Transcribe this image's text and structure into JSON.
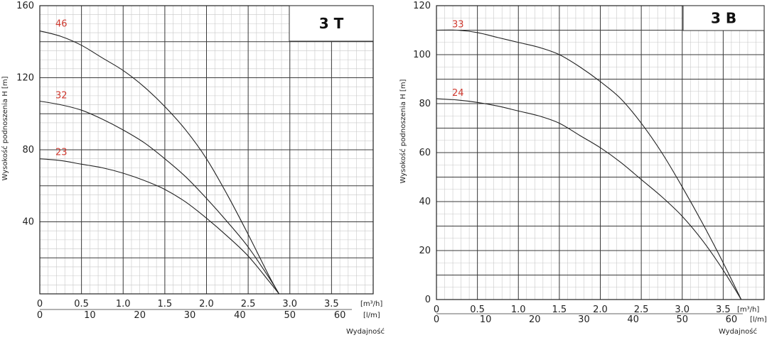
{
  "chart_data": [
    {
      "type": "line",
      "title": "3 T",
      "ylabel": "Wysokość podnoszenia H [m]",
      "x_unit": "[m³/h]",
      "x2_unit": "[l/m]",
      "xlabel": "Wydajność",
      "xlim": [
        0,
        4.0
      ],
      "ylim": [
        0,
        160
      ],
      "y_ticks": [
        40,
        80,
        120,
        160
      ],
      "x_ticks": [
        0,
        0.5,
        1.0,
        1.5,
        2.0,
        2.5,
        3.0,
        3.5
      ],
      "x_tick_labels": [
        "0",
        "0.5",
        "1.0",
        "1.5",
        "2.0",
        "2.5",
        "3.0",
        "3.5"
      ],
      "x2_ticks": [
        0,
        10,
        20,
        30,
        40,
        50,
        60
      ],
      "series": [
        {
          "name": "46",
          "x": [
            0,
            0.25,
            0.5,
            0.75,
            1.0,
            1.25,
            1.5,
            1.75,
            2.0,
            2.25,
            2.5,
            2.75,
            2.87
          ],
          "values": [
            146,
            143,
            138,
            131,
            124,
            115,
            104,
            91,
            75,
            55,
            33,
            10,
            0
          ]
        },
        {
          "name": "32",
          "x": [
            0,
            0.25,
            0.5,
            0.75,
            1.0,
            1.25,
            1.5,
            1.75,
            2.0,
            2.25,
            2.5,
            2.75,
            2.87
          ],
          "values": [
            107,
            105,
            102,
            97,
            91,
            84,
            75,
            65,
            53,
            40,
            26,
            9,
            0
          ]
        },
        {
          "name": "23",
          "x": [
            0,
            0.25,
            0.5,
            0.75,
            1.0,
            1.25,
            1.5,
            1.75,
            2.0,
            2.25,
            2.5,
            2.75,
            2.87
          ],
          "values": [
            75,
            74,
            72,
            70,
            67,
            63,
            58,
            51,
            42,
            32,
            21,
            7,
            0
          ]
        }
      ]
    },
    {
      "type": "line",
      "title": "3 B",
      "ylabel": "Wysokość podnoszenia H [m]",
      "x_unit": "[m³/h]",
      "x2_unit": "[l/m]",
      "xlabel": "Wydajność",
      "xlim": [
        0,
        4.0
      ],
      "ylim": [
        0,
        120
      ],
      "y_ticks": [
        0,
        20,
        40,
        60,
        80,
        100,
        120
      ],
      "x_ticks": [
        0,
        0.5,
        1.0,
        1.5,
        2.0,
        2.5,
        3.0,
        3.5
      ],
      "x_tick_labels": [
        "0",
        "0.5",
        "1.0",
        "1.5",
        "2.0",
        "2.5",
        "3.0",
        "3.5"
      ],
      "x2_ticks": [
        0,
        10,
        20,
        30,
        40,
        50,
        60
      ],
      "series": [
        {
          "name": "33",
          "x": [
            0,
            0.25,
            0.5,
            0.75,
            1.0,
            1.25,
            1.5,
            1.75,
            2.0,
            2.25,
            2.5,
            2.75,
            3.0,
            3.25,
            3.5,
            3.72
          ],
          "values": [
            110,
            110,
            109,
            107,
            105,
            103,
            100,
            95,
            89,
            82,
            72,
            60,
            46,
            31,
            15,
            0
          ]
        },
        {
          "name": "24",
          "x": [
            0,
            0.25,
            0.5,
            0.75,
            1.0,
            1.25,
            1.5,
            1.75,
            2.0,
            2.25,
            2.5,
            2.75,
            3.0,
            3.25,
            3.5,
            3.72
          ],
          "values": [
            82,
            81.5,
            80.5,
            79,
            77,
            75,
            72,
            67,
            62,
            56,
            49,
            42,
            34,
            24,
            12,
            0
          ]
        }
      ]
    }
  ]
}
